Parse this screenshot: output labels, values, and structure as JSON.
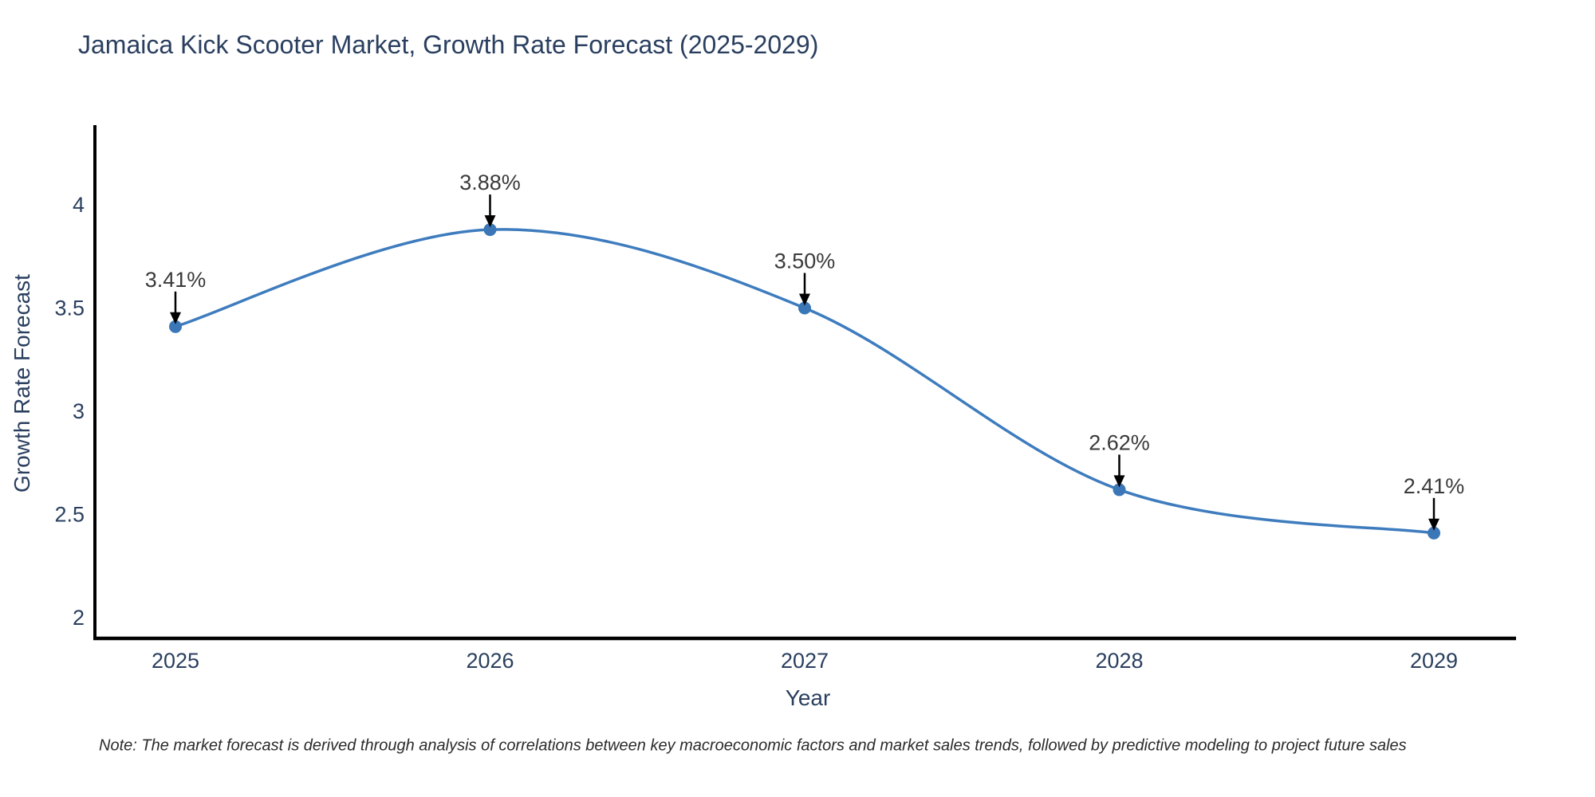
{
  "header": {
    "title": "Jamaica Kick Scooter Market, Growth Rate Forecast (2025-2029)"
  },
  "chart_data": {
    "type": "line",
    "line_shape": "spline",
    "x": [
      2025,
      2026,
      2027,
      2028,
      2029
    ],
    "series": [
      {
        "name": "Growth Rate Forecast",
        "values": [
          3.41,
          3.88,
          3.5,
          2.62,
          2.41
        ]
      }
    ],
    "point_labels": [
      "3.41%",
      "3.88%",
      "3.50%",
      "2.62%",
      "2.41%"
    ],
    "title": "Jamaica Kick Scooter Market, Growth Rate Forecast (2025-2029)",
    "xlabel": "Year",
    "ylabel": "Growth Rate Forecast",
    "xtick_labels": [
      "2025",
      "2026",
      "2027",
      "2028",
      "2029"
    ],
    "yticks": [
      2,
      2.5,
      3,
      3.5,
      4
    ],
    "ytick_labels": [
      "2",
      "2.5",
      "3",
      "3.5",
      "4"
    ],
    "ylim": [
      1.9,
      4.39
    ],
    "xlim": [
      2024.74,
      2029.26
    ],
    "grid": false,
    "legend": false,
    "colors": {
      "line": "#3e7cbe",
      "marker": "#3b76b6",
      "axis_line": "#000000",
      "tick_text": "#2a3f5f",
      "axis_title_text": "#2a3f5f",
      "title_text": "#2a3f5f",
      "annotation_text": "#3a3a3a",
      "annotation_arrow": "#000000",
      "background": "#ffffff"
    }
  },
  "footer": {
    "note": "Note: The market forecast is derived through analysis of correlations between key macroeconomic factors and market sales trends, followed by predictive modeling to project future sales"
  }
}
